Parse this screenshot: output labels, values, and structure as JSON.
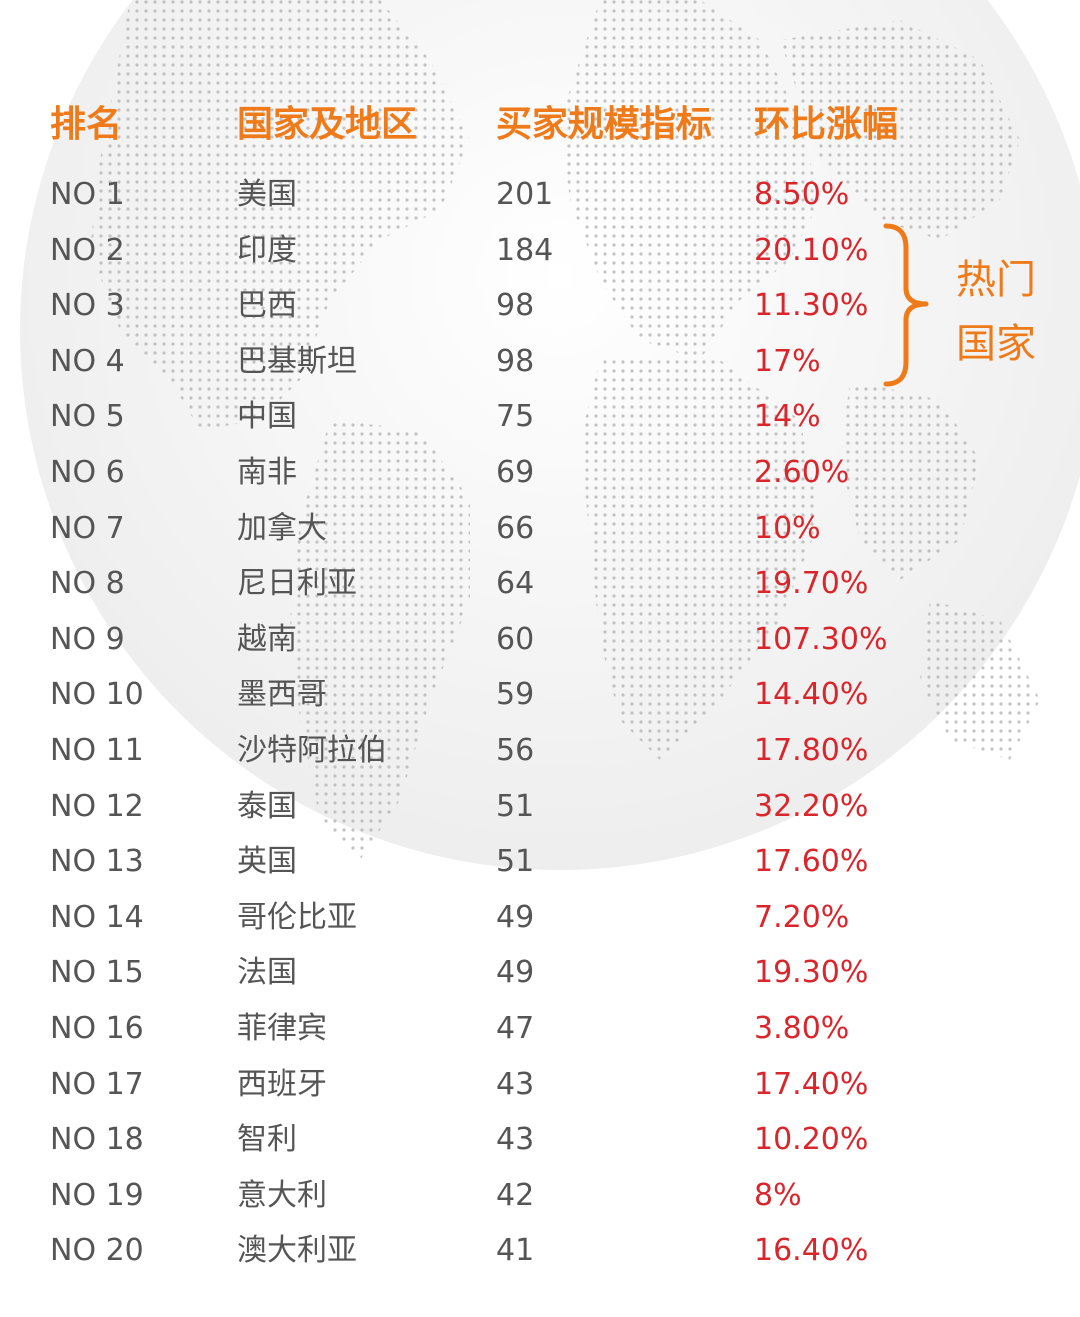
{
  "header": {
    "rank": "排名",
    "country": "国家及地区",
    "buyer_index": "买家规模指标",
    "change": "环比涨幅"
  },
  "rows": [
    {
      "rank": "NO 1",
      "country": "美国",
      "buyer": "201",
      "change": "8.50%"
    },
    {
      "rank": "NO 2",
      "country": "印度",
      "buyer": "184",
      "change": "20.10%"
    },
    {
      "rank": "NO 3",
      "country": "巴西",
      "buyer": "98",
      "change": "11.30%"
    },
    {
      "rank": "NO 4",
      "country": "巴基斯坦",
      "buyer": "98",
      "change": "17%"
    },
    {
      "rank": "NO 5",
      "country": "中国",
      "buyer": "75",
      "change": "14%"
    },
    {
      "rank": "NO 6",
      "country": "南非",
      "buyer": "69",
      "change": "2.60%"
    },
    {
      "rank": "NO 7",
      "country": "加拿大",
      "buyer": "66",
      "change": "10%"
    },
    {
      "rank": "NO 8",
      "country": "尼日利亚",
      "buyer": "64",
      "change": "19.70%"
    },
    {
      "rank": "NO 9",
      "country": "越南",
      "buyer": "60",
      "change": "107.30%"
    },
    {
      "rank": "NO 10",
      "country": "墨西哥",
      "buyer": "59",
      "change": "14.40%"
    },
    {
      "rank": "NO 11",
      "country": "沙特阿拉伯",
      "buyer": "56",
      "change": "17.80%"
    },
    {
      "rank": "NO 12",
      "country": "泰国",
      "buyer": "51",
      "change": "32.20%"
    },
    {
      "rank": "NO 13",
      "country": "英国",
      "buyer": "51",
      "change": "17.60%"
    },
    {
      "rank": "NO 14",
      "country": "哥伦比亚",
      "buyer": "49",
      "change": "7.20%"
    },
    {
      "rank": "NO 15",
      "country": "法国",
      "buyer": "49",
      "change": "19.30%"
    },
    {
      "rank": "NO 16",
      "country": "菲律宾",
      "buyer": "47",
      "change": "3.80%"
    },
    {
      "rank": "NO 17",
      "country": "西班牙",
      "buyer": "43",
      "change": "17.40%"
    },
    {
      "rank": "NO 18",
      "country": "智利",
      "buyer": "43",
      "change": "10.20%"
    },
    {
      "rank": "NO 19",
      "country": "意大利",
      "buyer": "42",
      "change": "8%"
    },
    {
      "rank": "NO 20",
      "country": "澳大利亚",
      "buyer": "41",
      "change": "16.40%"
    }
  ],
  "annotation": {
    "label": "热门国家"
  },
  "colors": {
    "accent_orange": "#ef7a1a",
    "change_red": "#d9262c",
    "text_gray": "#555555"
  }
}
